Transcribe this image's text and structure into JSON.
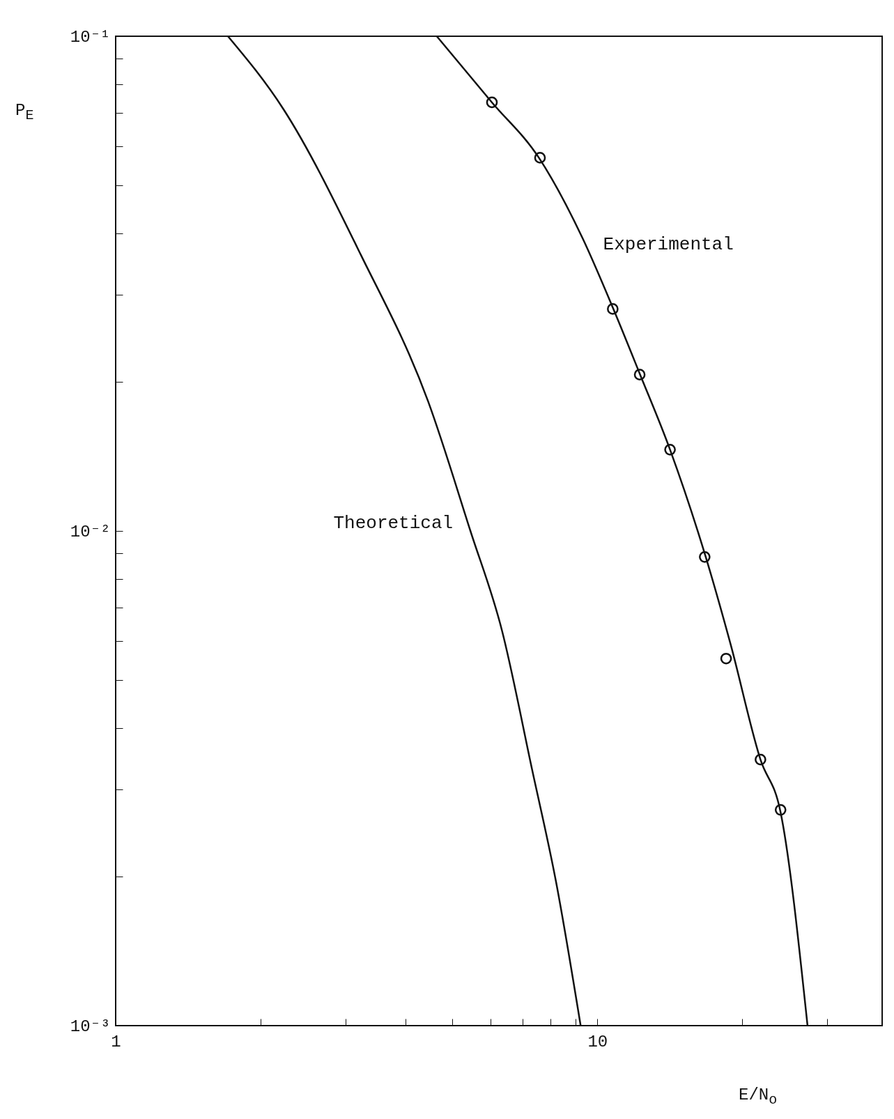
{
  "chart_data": {
    "type": "line",
    "xlabel": "E/N$_{o}$",
    "ylabel": "P$_{E}$",
    "log": "xy",
    "grid": false,
    "xlim": [
      1,
      39
    ],
    "ylim": [
      0.001,
      0.1
    ],
    "xticks": [
      1,
      {
        "value": 2,
        "label": null
      },
      {
        "value": 3,
        "label": null
      },
      {
        "value": 4,
        "label": null
      },
      {
        "value": 5,
        "label": null
      },
      {
        "value": 6,
        "label": null
      },
      {
        "value": 7,
        "label": null
      },
      {
        "value": 8,
        "label": null
      },
      {
        "value": 9,
        "label": null
      },
      10,
      {
        "value": 20,
        "label": null
      },
      {
        "value": 30,
        "label": null
      }
    ],
    "yticks": [
      {
        "value": 0.001,
        "label": "10⁻³"
      },
      {
        "value": 0.002,
        "label": null
      },
      {
        "value": 0.003,
        "label": null
      },
      {
        "value": 0.004,
        "label": null
      },
      {
        "value": 0.005,
        "label": null
      },
      {
        "value": 0.006,
        "label": null
      },
      {
        "value": 0.007,
        "label": null
      },
      {
        "value": 0.008,
        "label": null
      },
      {
        "value": 0.009,
        "label": null
      },
      {
        "value": 0.01,
        "label": "10⁻²"
      },
      {
        "value": 0.02,
        "label": null
      },
      {
        "value": 0.03,
        "label": null
      },
      {
        "value": 0.04,
        "label": null
      },
      {
        "value": 0.05,
        "label": null
      },
      {
        "value": 0.06,
        "label": null
      },
      {
        "value": 0.07,
        "label": null
      },
      {
        "value": 0.08,
        "label": null
      },
      {
        "value": 0.09,
        "label": null
      },
      {
        "value": 0.1,
        "label": "10⁻¹"
      }
    ],
    "series": [
      {
        "color": "#111111",
        "marker": "none",
        "line_style": "solid",
        "x": [
          1.71,
          2.23,
          3.23,
          4.45,
          5.45,
          6.34,
          7.32,
          8.2,
          9.23
        ],
        "values": [
          0.1,
          0.0712,
          0.0361,
          0.0183,
          0.01,
          0.00628,
          0.00329,
          0.00196,
          0.001
        ]
      },
      {
        "color": "#111111",
        "marker": "none",
        "line_style": "solid",
        "x": [
          4.64,
          6.04,
          7.56,
          9.31,
          10.76,
          12.24,
          14.15,
          16.7,
          18.9,
          21.8,
          24.0,
          27.3
        ],
        "values": [
          0.1,
          0.0735,
          0.0568,
          0.0391,
          0.0283,
          0.0208,
          0.0146,
          0.009,
          0.0059,
          0.00345,
          0.0027,
          0.001
        ]
      },
      {
        "type": "scatter",
        "color": "#111111",
        "marker": "circle",
        "x": [
          6.04,
          7.6,
          10.76,
          12.24,
          14.15,
          16.7,
          18.5,
          21.8,
          24.0
        ],
        "values": [
          0.0735,
          0.0568,
          0.0281,
          0.0207,
          0.0146,
          0.00886,
          0.00552,
          0.00345,
          0.00273
        ]
      }
    ],
    "annotations": [
      {
        "text": "Experimental",
        "x": 9.3,
        "y": 0.039
      },
      {
        "text": "Theoretical",
        "x": 5.45,
        "y": 0.01
      }
    ]
  }
}
